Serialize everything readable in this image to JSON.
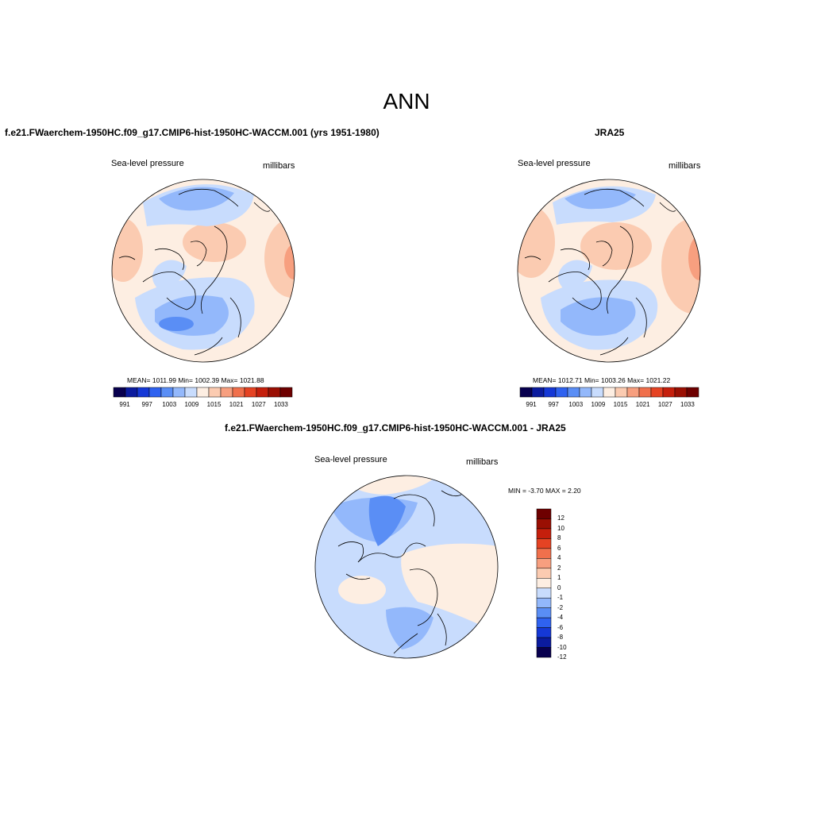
{
  "title": "ANN",
  "panels": [
    {
      "id": "model",
      "title": "f.e21.FWaerchem-1950HC.f09_g17.CMIP6-hist-1950HC-WACCM.001 (yrs 1951-1980)",
      "variable": "Sea-level pressure",
      "units": "millibars",
      "stats": "MEAN= 1011.99  Min= 1002.39  Max= 1021.88"
    },
    {
      "id": "obs",
      "title": "JRA25",
      "variable": "Sea-level pressure",
      "units": "millibars",
      "stats": "MEAN= 1012.71  Min= 1003.26  Max= 1021.22"
    },
    {
      "id": "diff",
      "title": "f.e21.FWaerchem-1950HC.f09_g17.CMIP6-hist-1950HC-WACCM.001 - JRA25",
      "variable": "Sea-level pressure",
      "units": "millibars",
      "stats": "MIN =  -3.70 MAX =   2.20"
    }
  ],
  "colorbar_abs": {
    "colors": [
      "#08004f",
      "#0b1b9e",
      "#1538d6",
      "#2f62f0",
      "#5a8ef5",
      "#93b8fb",
      "#c8dcfd",
      "#fdeee2",
      "#fbcbb1",
      "#f79f7f",
      "#f0704c",
      "#e54323",
      "#c51f0c",
      "#9a0f03",
      "#6e0000"
    ],
    "labels": [
      "991",
      "997",
      "1003",
      "1009",
      "1015",
      "1021",
      "1027",
      "1033"
    ]
  },
  "colorbar_diff": {
    "colors": [
      "#6e0000",
      "#9a0f03",
      "#c51f0c",
      "#e54323",
      "#f0704c",
      "#f79f7f",
      "#fbcbb1",
      "#fdeee2",
      "#c8dcfd",
      "#93b8fb",
      "#5a8ef5",
      "#2f62f0",
      "#1538d6",
      "#0b1b9e",
      "#08004f"
    ],
    "labels": [
      "12",
      "10",
      "8",
      "6",
      "4",
      "2",
      "1",
      "0",
      "-1",
      "-2",
      "-4",
      "-6",
      "-8",
      "-10",
      "-12"
    ]
  }
}
